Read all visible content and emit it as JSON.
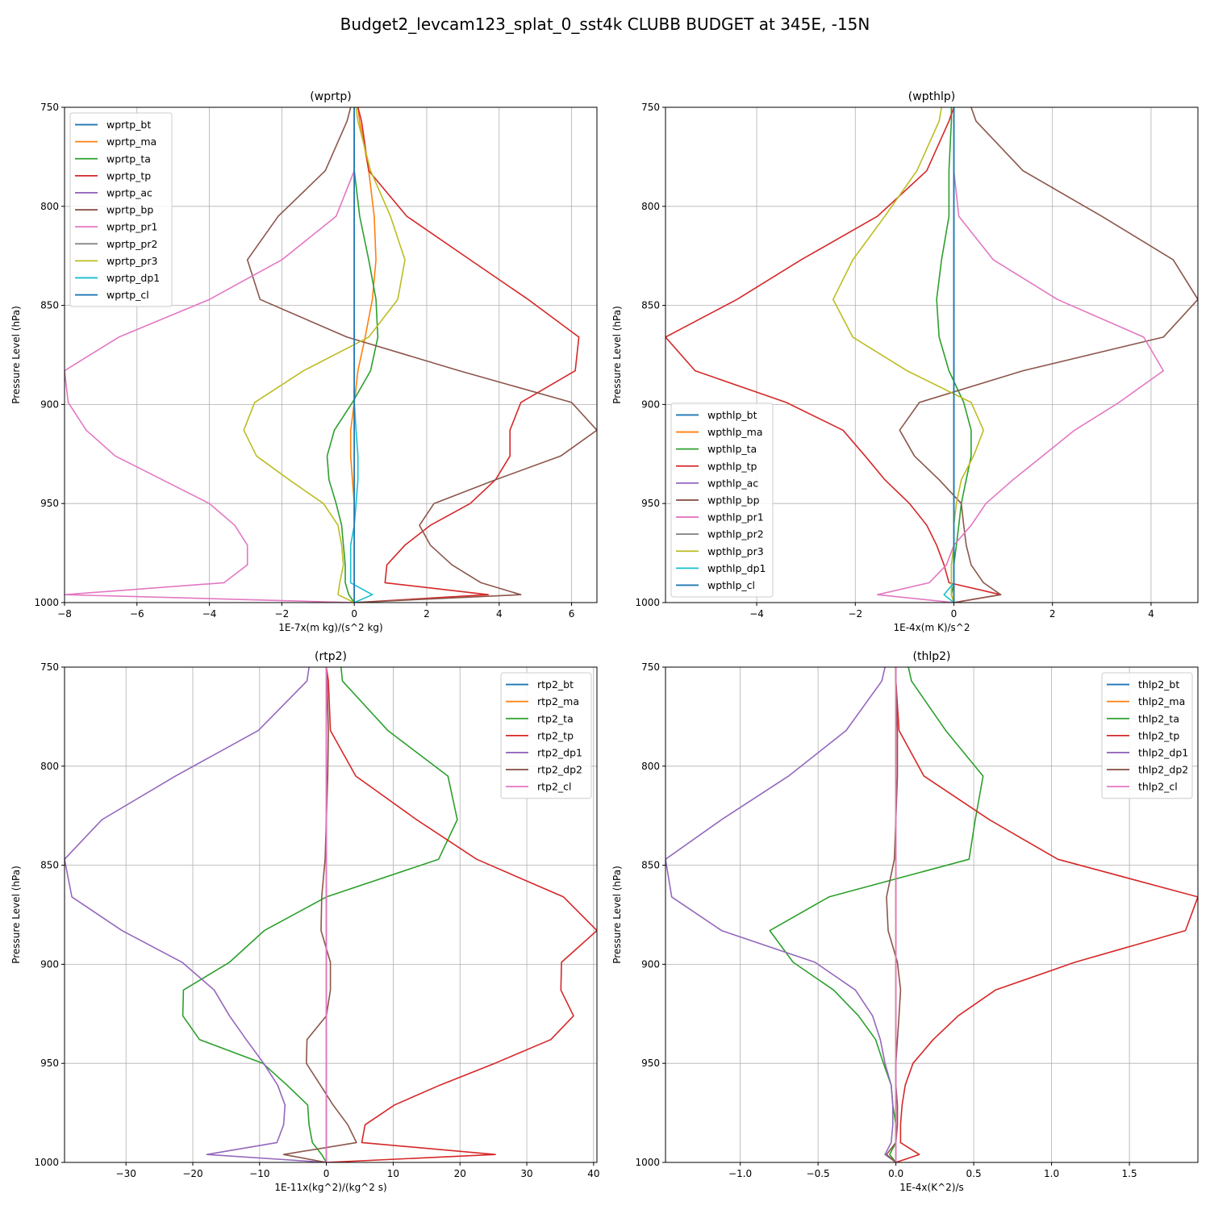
{
  "figure": {
    "title": "Budget2_levcam123_splat_0_sst4k CLUBB BUDGET at 345E, -15N"
  },
  "chart_data": [
    {
      "type": "line",
      "title": "(wprtp)",
      "xlabel": "1E-7x(m kg)/(s^2 kg)",
      "ylabel": "Pressure Level (hPa)",
      "xlim": [
        -8,
        6.7
      ],
      "ylim": [
        1000,
        750
      ],
      "xticks": [
        -8,
        -6,
        -4,
        -2,
        0,
        2,
        4,
        6
      ],
      "xtick_labels": [
        "−8",
        "−6",
        "−4",
        "−2",
        "0",
        "2",
        "4",
        "6"
      ],
      "yticks": [
        750,
        800,
        850,
        900,
        950,
        1000
      ],
      "grid": true,
      "legend_loc": "upper-left",
      "levels": [
        750,
        757,
        782,
        805,
        827,
        847,
        866,
        883,
        899,
        913,
        926,
        938,
        950,
        961,
        971,
        981,
        990,
        996,
        1000
      ],
      "series": [
        {
          "name": "wprtp_bt",
          "color": "#1f77b4",
          "values": [
            0,
            0,
            0,
            0,
            0,
            0,
            0,
            0,
            0,
            0,
            0,
            0,
            0,
            0,
            0,
            0,
            0,
            0,
            0
          ]
        },
        {
          "name": "wprtp_ma",
          "color": "#ff7f0e",
          "values": [
            0.1,
            0.15,
            0.4,
            0.55,
            0.6,
            0.5,
            0.3,
            0.1,
            0,
            -0.1,
            -0.1,
            -0.05,
            0,
            0,
            0,
            0,
            0,
            0,
            0
          ]
        },
        {
          "name": "wprtp_ta",
          "color": "#2ca02c",
          "values": [
            0,
            0,
            0,
            0.15,
            0.4,
            0.6,
            0.65,
            0.45,
            -0.05,
            -0.55,
            -0.75,
            -0.7,
            -0.5,
            -0.35,
            -0.3,
            -0.25,
            -0.25,
            -0.15,
            0
          ]
        },
        {
          "name": "wprtp_tp",
          "color": "#d62728",
          "values": [
            0.1,
            0.2,
            0.4,
            1.45,
            3.2,
            4.8,
            6.2,
            6.1,
            4.6,
            4.3,
            4.3,
            3.9,
            3.2,
            2.1,
            1.4,
            0.9,
            0.85,
            3.7,
            0
          ]
        },
        {
          "name": "wprtp_ac",
          "color": "#9467bd",
          "values": [
            0,
            0,
            0,
            0,
            0,
            0,
            0,
            0,
            0,
            0,
            0,
            0,
            0,
            0,
            0,
            0,
            0,
            0,
            0
          ]
        },
        {
          "name": "wprtp_bp",
          "color": "#8c564b",
          "values": [
            -0.1,
            -0.2,
            -0.8,
            -2.1,
            -2.95,
            -2.6,
            -0.2,
            2.9,
            6.0,
            6.7,
            5.7,
            3.9,
            2.2,
            1.8,
            2.1,
            2.7,
            3.5,
            4.6,
            0
          ]
        },
        {
          "name": "wprtp_pr1",
          "color": "#e377c2",
          "values": [
            0,
            0,
            0,
            -0.5,
            -2.0,
            -4.0,
            -6.5,
            -8.0,
            -7.9,
            -7.4,
            -6.6,
            -5.3,
            -4.0,
            -3.3,
            -2.95,
            -2.95,
            -3.6,
            -8.0,
            0
          ]
        },
        {
          "name": "wprtp_pr2",
          "color": "#7f7f7f",
          "values": [
            0,
            0,
            0,
            0,
            0,
            0,
            0,
            0,
            0,
            0,
            0,
            0,
            0,
            0,
            0,
            0,
            0,
            0,
            0
          ]
        },
        {
          "name": "wprtp_pr3",
          "color": "#bcbd22",
          "values": [
            0.05,
            0.1,
            0.45,
            1.0,
            1.4,
            1.2,
            0.4,
            -1.4,
            -2.75,
            -3.05,
            -2.7,
            -1.8,
            -0.85,
            -0.45,
            -0.35,
            -0.3,
            -0.4,
            -0.45,
            0
          ]
        },
        {
          "name": "wprtp_dp1",
          "color": "#17becf",
          "values": [
            0,
            0,
            0,
            0,
            0,
            0,
            0,
            0,
            0,
            0.05,
            0.1,
            0.1,
            0.05,
            0,
            -0.1,
            -0.1,
            -0.1,
            0.5,
            0
          ]
        },
        {
          "name": "wprtp_cl",
          "color": "#1f77b4",
          "values": [
            0,
            0,
            0,
            0,
            0,
            0,
            0,
            0,
            0,
            0,
            0,
            0,
            0,
            0,
            0,
            0,
            0,
            0,
            0
          ]
        }
      ]
    },
    {
      "type": "line",
      "title": "(wpthlp)",
      "xlabel": "1E-4x(m K)/s^2",
      "ylabel": "Pressure Level (hPa)",
      "xlim": [
        -5.85,
        4.95
      ],
      "ylim": [
        1000,
        750
      ],
      "xticks": [
        -4,
        -2,
        0,
        2,
        4
      ],
      "xtick_labels": [
        "−4",
        "−2",
        "0",
        "2",
        "4"
      ],
      "yticks": [
        750,
        800,
        850,
        900,
        950,
        1000
      ],
      "grid": true,
      "legend_loc": "lower-left",
      "levels": [
        750,
        757,
        782,
        805,
        827,
        847,
        866,
        883,
        899,
        913,
        926,
        938,
        950,
        961,
        971,
        981,
        990,
        996,
        1000
      ],
      "series": [
        {
          "name": "wpthlp_bt",
          "color": "#1f77b4",
          "values": [
            0,
            0,
            0,
            0,
            0,
            0,
            0,
            0,
            0,
            0,
            0,
            0,
            0,
            0,
            0,
            0,
            0,
            0,
            0
          ]
        },
        {
          "name": "wpthlp_ma",
          "color": "#ff7f0e",
          "values": [
            0,
            0,
            0,
            0,
            0,
            0,
            0,
            0,
            0,
            0,
            0,
            0,
            0,
            0,
            0,
            0,
            0,
            0,
            0
          ]
        },
        {
          "name": "wpthlp_ta",
          "color": "#2ca02c",
          "values": [
            -0.05,
            -0.05,
            -0.1,
            -0.1,
            -0.25,
            -0.35,
            -0.3,
            -0.1,
            0.2,
            0.35,
            0.35,
            0.25,
            0.15,
            0.1,
            0.05,
            0,
            0,
            -0.05,
            0
          ]
        },
        {
          "name": "wpthlp_tp",
          "color": "#d62728",
          "values": [
            0,
            -0.1,
            -0.55,
            -1.55,
            -3.1,
            -4.4,
            -5.85,
            -5.25,
            -3.4,
            -2.25,
            -1.8,
            -1.4,
            -0.9,
            -0.55,
            -0.35,
            -0.2,
            -0.1,
            0.95,
            0
          ]
        },
        {
          "name": "wpthlp_ac",
          "color": "#9467bd",
          "values": [
            0,
            0,
            0,
            0,
            0,
            0,
            0,
            0,
            0,
            0,
            0,
            0,
            0,
            0,
            0,
            0,
            0,
            0,
            0
          ]
        },
        {
          "name": "wpthlp_bp",
          "color": "#8c564b",
          "values": [
            0.35,
            0.45,
            1.4,
            3.0,
            4.45,
            4.95,
            4.25,
            1.4,
            -0.7,
            -1.1,
            -0.8,
            -0.3,
            0.15,
            0.2,
            0.25,
            0.35,
            0.6,
            0.95,
            0
          ]
        },
        {
          "name": "wpthlp_pr1",
          "color": "#e377c2",
          "values": [
            0,
            0,
            0,
            0.1,
            0.8,
            2.1,
            3.85,
            4.25,
            3.35,
            2.45,
            1.8,
            1.2,
            0.65,
            0.35,
            0,
            -0.15,
            -0.5,
            -1.55,
            0
          ]
        },
        {
          "name": "wpthlp_pr2",
          "color": "#7f7f7f",
          "values": [
            0,
            0,
            0,
            0,
            0,
            0,
            0,
            0,
            0,
            0,
            0,
            0,
            0,
            0,
            0,
            0,
            0,
            0,
            0
          ]
        },
        {
          "name": "wpthlp_pr3",
          "color": "#bcbd22",
          "values": [
            -0.25,
            -0.3,
            -0.75,
            -1.4,
            -2.05,
            -2.45,
            -2.05,
            -0.95,
            0.35,
            0.6,
            0.4,
            0.15,
            0.05,
            0,
            0,
            -0.05,
            -0.05,
            -0.05,
            0
          ]
        },
        {
          "name": "wpthlp_dp1",
          "color": "#17becf",
          "values": [
            0,
            0,
            0,
            0,
            0,
            0,
            0,
            0,
            0,
            0,
            0,
            0,
            0,
            0,
            0,
            0,
            0,
            -0.2,
            0
          ]
        },
        {
          "name": "wpthlp_cl",
          "color": "#1f77b4",
          "values": [
            0,
            0,
            0,
            0,
            0,
            0,
            0,
            0,
            0,
            0,
            0,
            0,
            0,
            0,
            0,
            0,
            0,
            0,
            0
          ]
        }
      ]
    },
    {
      "type": "line",
      "title": "(rtp2)",
      "xlabel": "1E-11x(kg^2)/(kg^2 s)",
      "ylabel": "Pressure Level (hPa)",
      "xlim": [
        -39.2,
        40.5
      ],
      "ylim": [
        1000,
        750
      ],
      "xticks": [
        -30,
        -20,
        -10,
        0,
        10,
        20,
        30,
        40
      ],
      "xtick_labels": [
        "−30",
        "−20",
        "−10",
        "0",
        "10",
        "20",
        "30",
        "40"
      ],
      "yticks": [
        750,
        800,
        850,
        900,
        950,
        1000
      ],
      "grid": true,
      "legend_loc": "upper-right",
      "levels": [
        750,
        757,
        782,
        805,
        827,
        847,
        866,
        883,
        899,
        913,
        926,
        938,
        950,
        961,
        971,
        981,
        990,
        996,
        1000
      ],
      "series": [
        {
          "name": "rtp2_bt",
          "color": "#1f77b4",
          "values": [
            0,
            0,
            0,
            0,
            0,
            0,
            0,
            0,
            0,
            0,
            0,
            0,
            0,
            0,
            0,
            0,
            0,
            0,
            0
          ]
        },
        {
          "name": "rtp2_ma",
          "color": "#ff7f0e",
          "values": [
            0,
            0,
            0,
            0,
            0,
            0,
            0,
            0,
            0,
            0,
            0,
            0,
            0,
            0,
            0,
            0,
            0,
            0,
            0
          ]
        },
        {
          "name": "rtp2_ta",
          "color": "#2ca02c",
          "values": [
            2.2,
            2.4,
            9.2,
            18.2,
            19.6,
            16.8,
            0.0,
            -9.3,
            -14.5,
            -21.4,
            -21.5,
            -19.0,
            -9.5,
            -5.9,
            -2.8,
            -2.6,
            -2.1,
            -0.7,
            0
          ]
        },
        {
          "name": "rtp2_tp",
          "color": "#d62728",
          "values": [
            0,
            0.3,
            0.6,
            4.4,
            13.5,
            22.5,
            35.5,
            40.5,
            35.2,
            35.1,
            37.0,
            33.6,
            25.2,
            17.0,
            10.2,
            5.8,
            5.3,
            25.3,
            0
          ]
        },
        {
          "name": "rtp2_dp1",
          "color": "#9467bd",
          "values": [
            -2.6,
            -2.9,
            -10.2,
            -22.6,
            -33.6,
            -39.2,
            -38.1,
            -30.6,
            -21.6,
            -16.8,
            -14.5,
            -12.0,
            -9.4,
            -7.3,
            -6.2,
            -6.4,
            -7.4,
            -17.9,
            0
          ]
        },
        {
          "name": "rtp2_dp2",
          "color": "#8c564b",
          "values": [
            0,
            0.1,
            0.3,
            0.2,
            0,
            -0.2,
            -0.7,
            -0.8,
            0.6,
            0.6,
            0,
            -2.9,
            -3.0,
            -0.9,
            1.0,
            3.2,
            4.5,
            -6.4,
            0
          ]
        },
        {
          "name": "rtp2_cl",
          "color": "#e377c2",
          "values": [
            0,
            0,
            0,
            0,
            0,
            0,
            0,
            0,
            0,
            0,
            0,
            0,
            0,
            0,
            0,
            0,
            0,
            0,
            0
          ]
        }
      ]
    },
    {
      "type": "line",
      "title": "(thlp2)",
      "xlabel": "1E-4x(K^2)/s",
      "ylabel": "Pressure Level (hPa)",
      "xlim": [
        -1.48,
        1.94
      ],
      "ylim": [
        1000,
        750
      ],
      "xticks": [
        -1.0,
        -0.5,
        0.0,
        0.5,
        1.0,
        1.5
      ],
      "xtick_labels": [
        "−1.0",
        "−0.5",
        "0.0",
        "0.5",
        "1.0",
        "1.5"
      ],
      "yticks": [
        750,
        800,
        850,
        900,
        950,
        1000
      ],
      "grid": true,
      "legend_loc": "upper-right",
      "levels": [
        750,
        757,
        782,
        805,
        827,
        847,
        866,
        883,
        899,
        913,
        926,
        938,
        950,
        961,
        971,
        981,
        990,
        996,
        1000
      ],
      "series": [
        {
          "name": "thlp2_bt",
          "color": "#1f77b4",
          "values": [
            0,
            0,
            0,
            0,
            0,
            0,
            0,
            0,
            0,
            0,
            0,
            0,
            0,
            0,
            0,
            0,
            0,
            0,
            0
          ]
        },
        {
          "name": "thlp2_ma",
          "color": "#ff7f0e",
          "values": [
            0,
            0,
            0,
            0,
            0,
            0,
            0,
            0,
            0,
            0,
            0,
            0,
            0,
            0,
            0,
            0,
            0,
            0,
            0
          ]
        },
        {
          "name": "thlp2_ta",
          "color": "#2ca02c",
          "values": [
            0.08,
            0.1,
            0.32,
            0.56,
            0.51,
            0.47,
            -0.43,
            -0.81,
            -0.66,
            -0.4,
            -0.24,
            -0.13,
            -0.08,
            -0.03,
            -0.02,
            0,
            0,
            -0.04,
            0
          ]
        },
        {
          "name": "thlp2_tp",
          "color": "#d62728",
          "values": [
            0,
            0,
            0.02,
            0.18,
            0.6,
            1.04,
            1.94,
            1.86,
            1.15,
            0.64,
            0.4,
            0.24,
            0.11,
            0.06,
            0.04,
            0.03,
            0.03,
            0.15,
            0
          ]
        },
        {
          "name": "thlp2_dp1",
          "color": "#9467bd",
          "values": [
            -0.07,
            -0.09,
            -0.32,
            -0.69,
            -1.12,
            -1.48,
            -1.44,
            -1.12,
            -0.52,
            -0.26,
            -0.15,
            -0.1,
            -0.07,
            -0.03,
            -0.02,
            -0.02,
            -0.03,
            -0.07,
            0
          ]
        },
        {
          "name": "thlp2_dp2",
          "color": "#8c564b",
          "values": [
            0,
            0,
            0.01,
            0.01,
            0,
            -0.01,
            -0.06,
            -0.05,
            0.01,
            0.03,
            0.02,
            0.01,
            0,
            0,
            0.01,
            0.01,
            0,
            -0.06,
            0
          ]
        },
        {
          "name": "thlp2_cl",
          "color": "#e377c2",
          "values": [
            0,
            0,
            0,
            0,
            0,
            0,
            0,
            0,
            0,
            0,
            0,
            0,
            0,
            0,
            0,
            0,
            0,
            0,
            0
          ]
        }
      ]
    }
  ]
}
